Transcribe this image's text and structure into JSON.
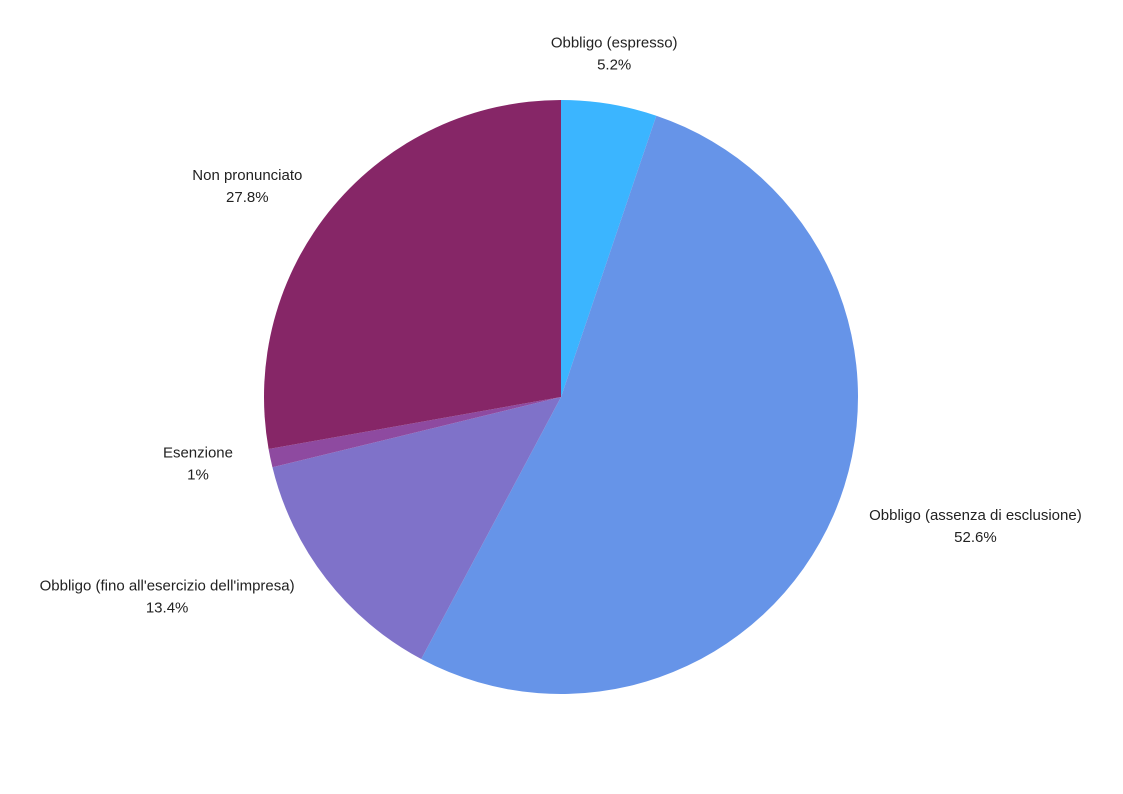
{
  "chart_data": {
    "type": "pie",
    "categories": [
      "Obbligo (espresso)",
      "Obbligo (assenza di esclusione)",
      "Obbligo (fino all'esercizio dell'impresa)",
      "Esenzione",
      "Non pronunciato"
    ],
    "values": [
      5.2,
      52.6,
      13.4,
      1,
      27.8
    ],
    "value_labels": [
      "5.2%",
      "52.6%",
      "13.4%",
      "1%",
      "27.8%"
    ],
    "colors": [
      "#3bb5ff",
      "#6694e8",
      "#7f72c9",
      "#8e4aa0",
      "#862667"
    ]
  }
}
